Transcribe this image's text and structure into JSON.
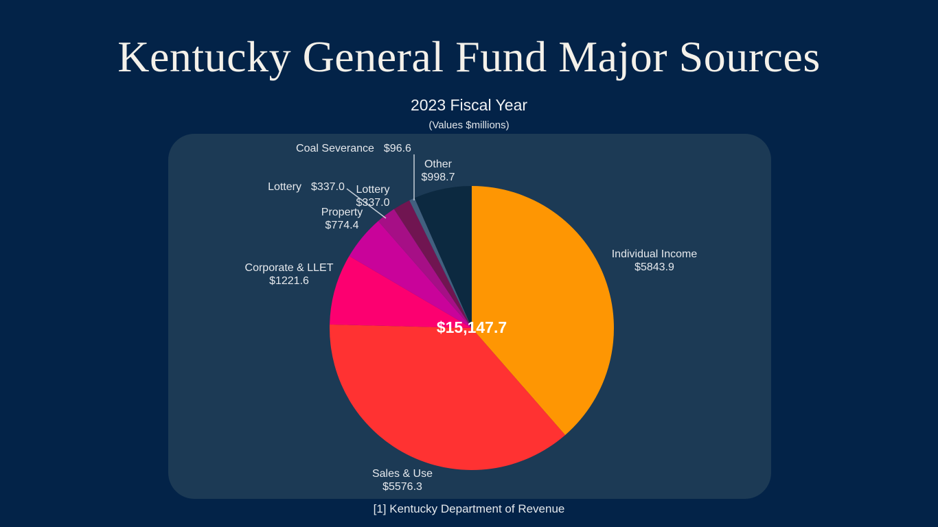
{
  "header": {
    "title": "Kentucky General Fund Major Sources",
    "subtitle": "2023 Fiscal Year",
    "units_note": "(Values $millions)"
  },
  "footer": {
    "source": "[1] Kentucky Department of Revenue"
  },
  "chart_data": {
    "type": "pie",
    "title": "Kentucky General Fund Major Sources",
    "subtitle": "2023 Fiscal Year",
    "units": "$millions",
    "center_total": "$15,147.7",
    "start_angle_deg": 0,
    "direction": "clockwise",
    "legend": "none (labels with leader lines around pie)",
    "slices": [
      {
        "label": "Individual Income",
        "value": 5843.9,
        "value_label": "$5843.9",
        "color": "#FE9603"
      },
      {
        "label": "Sales & Use",
        "value": 5576.3,
        "value_label": "$5576.3",
        "color": "#FF3232"
      },
      {
        "label": "Corporate & LLET",
        "value": 1221.6,
        "value_label": "$1221.6",
        "color": "#FC0070"
      },
      {
        "label": "Property",
        "value": 774.4,
        "value_label": "$774.4",
        "color": "#C9039A"
      },
      {
        "label": "Lottery",
        "value": 337.0,
        "value_label": "$337.0",
        "color": "#A60F86"
      },
      {
        "label": "",
        "value": 299.2,
        "value_label": "",
        "color": "#701551",
        "note": "unlabeled thin slice; size inferred from center total minus labeled slices"
      },
      {
        "label": "Coal Severance",
        "value": 96.6,
        "value_label": "$96.6",
        "color": "#42607F"
      },
      {
        "label": "Other",
        "value": 998.7,
        "value_label": "$998.7",
        "color": "#0C2940"
      }
    ]
  },
  "colors": {
    "background": "#032348",
    "panel": "#1C3A55",
    "title_text": "#F4F1EA",
    "label_text": "#E6E9ED",
    "leader_line": "#C7D0D9",
    "center_text": "#FFFFFF"
  }
}
